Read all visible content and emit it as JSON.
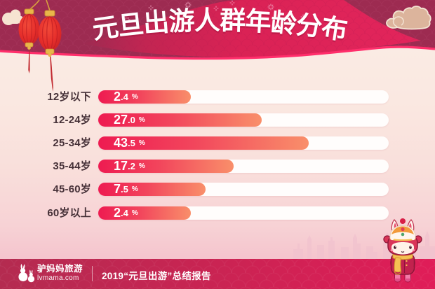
{
  "header": {
    "title": "元旦出游人群年龄分布",
    "decorations": [
      "red-lanterns",
      "cloud-left",
      "cloud-right",
      "firework-sparkles"
    ],
    "banner_color": "#9d2b51",
    "ribbon_color": "#dd2356",
    "edge_line_color": "#ff2e6b"
  },
  "chart_data": {
    "type": "bar",
    "orientation": "horizontal",
    "title": "元旦出游人群年龄分布",
    "categories": [
      "12岁以下",
      "12-24岁",
      "25-34岁",
      "35-44岁",
      "45-60岁",
      "60岁以上"
    ],
    "values": [
      2.4,
      27.0,
      43.5,
      17.2,
      7.5,
      2.4
    ],
    "unit": "%",
    "value_labels": [
      "2.4%",
      "27.0%",
      "43.5%",
      "17.2%",
      "7.5%",
      "2.4%"
    ],
    "grid": false,
    "legend": false,
    "track_color": "#ffffff",
    "bar_gradient": [
      "#ee1b51",
      "#f98f6a"
    ],
    "label_color": "#463138"
  },
  "footer": {
    "brand_name": "驴妈妈旅游",
    "brand_domain": "lvmama.com",
    "report_title": "2019“元旦出游”总结报告",
    "band_color": "#cb2553",
    "decorations": [
      "donkey-logo",
      "city-skyline",
      "donkey-mascot-lion-hat"
    ]
  },
  "colors": {
    "body_top": "#fbeee6",
    "body_bottom": "#f1b2c3",
    "category_text": "#463138",
    "value_text": "#ffffff"
  }
}
